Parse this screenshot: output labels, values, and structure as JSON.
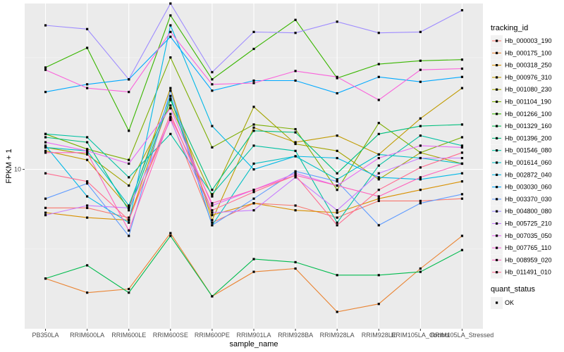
{
  "chart_data": {
    "type": "line",
    "title": "",
    "xlabel": "sample_name",
    "ylabel": "FPKM + 1",
    "y_scale": "log10",
    "y_ticks": [
      10
    ],
    "y_tick_labels": [
      "10"
    ],
    "ylim": [
      4.4,
      23.5
    ],
    "grid": true,
    "legend_position": "right",
    "categories": [
      "PB350LA",
      "RRIM600LA",
      "RRIM600LE",
      "RRIM600SE",
      "RRIM600PE",
      "RRIM901LA",
      "RRIM928BA",
      "RRIM928LA",
      "RRIM928LE",
      "RRIM105LA_Control",
      "RRIM105LA_Stressed"
    ],
    "legend_title": "tracking_id",
    "legend2_title": "quant_status",
    "legend2_items": [
      "OK"
    ],
    "series": [
      {
        "name": "Hb_000003_190",
        "color": "#F8766D",
        "values": [
          8.2,
          8.2,
          7.8,
          13.0,
          7.6,
          8.4,
          8.3,
          7.8,
          8.5,
          8.5,
          8.6
        ]
      },
      {
        "name": "Hb_000175_100",
        "color": "#EA8331",
        "values": [
          5.7,
          5.3,
          5.4,
          7.2,
          5.2,
          5.9,
          6.0,
          4.8,
          5.0,
          6.0,
          7.1
        ]
      },
      {
        "name": "Hb_000318_250",
        "color": "#D89000",
        "values": [
          8.0,
          7.8,
          7.7,
          14.4,
          7.9,
          8.4,
          8.1,
          8.0,
          8.6,
          9.0,
          9.4
        ]
      },
      {
        "name": "Hb_000976_310",
        "color": "#C09B00",
        "values": [
          11.0,
          10.5,
          8.2,
          15.2,
          7.7,
          12.4,
          11.5,
          11.9,
          10.8,
          13.0,
          15.2
        ]
      },
      {
        "name": "Hb_001080_230",
        "color": "#A3A500",
        "values": [
          11.2,
          10.8,
          9.2,
          13.9,
          8.7,
          13.8,
          11.4,
          11.0,
          9.5,
          10.9,
          10.3
        ]
      },
      {
        "name": "Hb_001104_190",
        "color": "#7CAE00",
        "values": [
          12.0,
          11.1,
          10.5,
          17.8,
          11.2,
          12.6,
          12.3,
          9.0,
          12.7,
          10.9,
          11.8
        ]
      },
      {
        "name": "Hb_001266_100",
        "color": "#39B600",
        "values": [
          16.9,
          18.7,
          12.2,
          22.1,
          15.9,
          18.6,
          21.6,
          16.0,
          17.2,
          17.5,
          17.6
        ]
      },
      {
        "name": "Hb_001329_160",
        "color": "#00BB4E",
        "values": [
          5.7,
          6.1,
          5.3,
          7.1,
          5.2,
          6.3,
          6.2,
          5.8,
          5.8,
          5.9,
          6.6
        ]
      },
      {
        "name": "Hb_001396_200",
        "color": "#00BF7D",
        "values": [
          11.8,
          11.5,
          8.1,
          14.3,
          9.0,
          12.2,
          12.1,
          9.8,
          12.0,
          12.5,
          12.6
        ]
      },
      {
        "name": "Hb_001546_080",
        "color": "#00C1A3",
        "values": [
          12.0,
          11.8,
          9.6,
          12.0,
          8.8,
          11.3,
          11.0,
          7.6,
          10.2,
          11.9,
          11.3
        ]
      },
      {
        "name": "Hb_001614_060",
        "color": "#00BFC4",
        "values": [
          11.2,
          11.0,
          8.3,
          14.6,
          7.5,
          10.3,
          10.7,
          9.5,
          10.8,
          10.6,
          10.3
        ]
      },
      {
        "name": "Hb_002872_040",
        "color": "#00B8E7",
        "values": [
          11.3,
          8.7,
          7.6,
          21.0,
          12.5,
          10.0,
          10.7,
          10.6,
          9.6,
          9.5,
          9.8
        ]
      },
      {
        "name": "Hb_003030_060",
        "color": "#00A9FF",
        "values": [
          14.9,
          15.5,
          15.9,
          19.8,
          15.0,
          15.8,
          15.8,
          14.8,
          16.1,
          15.7,
          16.1
        ]
      },
      {
        "name": "Hb_003370_030",
        "color": "#619CFF",
        "values": [
          8.6,
          9.3,
          7.1,
          15.0,
          7.5,
          8.6,
          9.9,
          9.4,
          7.5,
          8.4,
          8.8
        ]
      },
      {
        "name": "Hb_004800_080",
        "color": "#9F8CFF",
        "values": [
          21.0,
          20.6,
          15.9,
          23.5,
          16.5,
          20.3,
          20.2,
          21.4,
          20.2,
          20.3,
          22.7
        ]
      },
      {
        "name": "Hb_005725_210",
        "color": "#C77CFF",
        "values": [
          7.9,
          8.3,
          8.2,
          12.9,
          8.0,
          8.1,
          9.6,
          8.1,
          9.8,
          10.6,
          10.6
        ]
      },
      {
        "name": "Hb_007035_050",
        "color": "#E76BF3",
        "values": [
          11.5,
          11.0,
          10.3,
          13.7,
          8.3,
          9.0,
          9.8,
          9.2,
          10.6,
          11.3,
          11.2
        ]
      },
      {
        "name": "Hb_007765_110",
        "color": "#FA62DB",
        "values": [
          16.7,
          15.2,
          14.9,
          20.3,
          15.5,
          15.6,
          16.6,
          16.1,
          14.3,
          16.7,
          16.8
        ]
      },
      {
        "name": "Hb_008959_020",
        "color": "#FF62BC",
        "values": [
          10.9,
          10.9,
          7.3,
          13.1,
          8.4,
          9.0,
          9.7,
          9.2,
          8.7,
          9.6,
          10.3
        ]
      },
      {
        "name": "Hb_011491_010",
        "color": "#FF6C91",
        "values": [
          9.8,
          9.4,
          7.7,
          13.3,
          8.1,
          8.9,
          9.7,
          7.5,
          9.0,
          10.1,
          10.9
        ]
      }
    ]
  }
}
